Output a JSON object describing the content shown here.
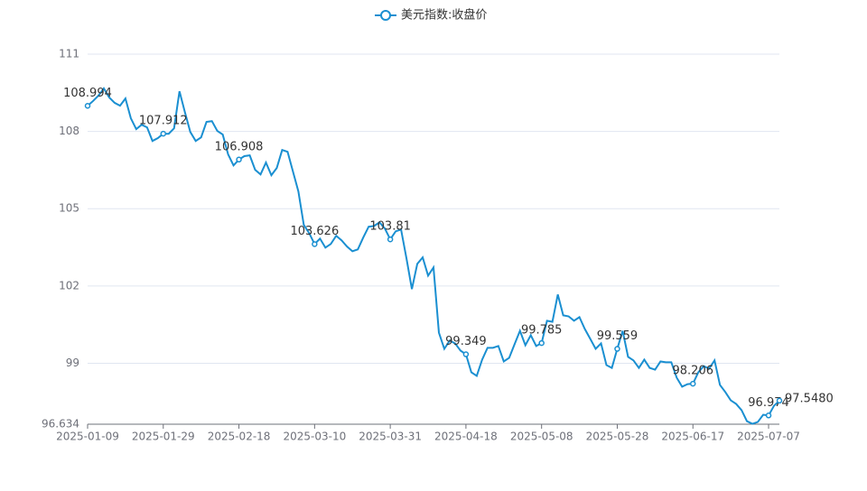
{
  "chart_data": {
    "type": "line",
    "categories": [
      "2025-01-09",
      null,
      null,
      null,
      null,
      null,
      null,
      null,
      null,
      null,
      null,
      null,
      null,
      null,
      "2025-01-29",
      null,
      null,
      null,
      null,
      null,
      null,
      null,
      null,
      null,
      null,
      null,
      null,
      null,
      "2025-02-18",
      null,
      null,
      null,
      null,
      null,
      null,
      null,
      null,
      null,
      null,
      null,
      null,
      null,
      "2025-03-10",
      null,
      null,
      null,
      null,
      null,
      null,
      null,
      null,
      null,
      null,
      null,
      null,
      null,
      "2025-03-31",
      null,
      null,
      null,
      null,
      null,
      null,
      null,
      null,
      null,
      null,
      null,
      null,
      null,
      "2025-04-18",
      null,
      null,
      null,
      null,
      null,
      null,
      null,
      null,
      null,
      null,
      null,
      null,
      null,
      "2025-05-08",
      null,
      null,
      null,
      null,
      null,
      null,
      null,
      null,
      null,
      null,
      null,
      null,
      null,
      "2025-05-28",
      null,
      null,
      null,
      null,
      null,
      null,
      null,
      null,
      null,
      null,
      null,
      null,
      null,
      "2025-06-17",
      null,
      null,
      null,
      null,
      null,
      null,
      null,
      null,
      null,
      null,
      null,
      null,
      null,
      "2025-07-07",
      null,
      null
    ],
    "series": [
      {
        "name": "美元指数:收盘价",
        "color": "#1a8fd1",
        "values": [
          108.994,
          109.18,
          109.39,
          109.67,
          109.32,
          109.11,
          109.0,
          109.28,
          108.51,
          108.09,
          108.26,
          108.16,
          107.63,
          107.74,
          107.912,
          107.91,
          108.12,
          109.56,
          108.75,
          107.98,
          107.63,
          107.77,
          108.37,
          108.4,
          108.02,
          107.88,
          107.11,
          106.68,
          106.908,
          107.04,
          107.07,
          106.51,
          106.33,
          106.79,
          106.3,
          106.58,
          107.28,
          107.21,
          106.44,
          105.67,
          104.37,
          104.05,
          103.626,
          103.84,
          103.49,
          103.63,
          103.95,
          103.77,
          103.53,
          103.35,
          103.42,
          103.88,
          104.3,
          104.33,
          104.47,
          104.23,
          103.81,
          104.12,
          104.19,
          103.07,
          101.88,
          102.86,
          103.11,
          102.4,
          102.72,
          100.19,
          99.56,
          99.88,
          99.77,
          99.49,
          99.349,
          98.65,
          98.51,
          99.14,
          99.6,
          99.6,
          99.67,
          99.07,
          99.21,
          99.74,
          100.26,
          99.7,
          100.09,
          99.67,
          99.785,
          100.65,
          100.61,
          101.67,
          100.86,
          100.82,
          100.65,
          100.79,
          100.33,
          99.95,
          99.56,
          99.77,
          98.93,
          98.82,
          99.559,
          100.26,
          99.25,
          99.11,
          98.82,
          99.14,
          98.82,
          98.75,
          99.07,
          99.04,
          99.04,
          98.44,
          98.09,
          98.19,
          98.206,
          98.65,
          98.89,
          98.79,
          99.11,
          98.16,
          97.88,
          97.56,
          97.42,
          97.18,
          96.75,
          96.65,
          96.72,
          97.0,
          96.974,
          97.35,
          97.548
        ],
        "value_labels": [
          "108.994",
          null,
          null,
          null,
          null,
          null,
          null,
          null,
          null,
          null,
          null,
          null,
          null,
          null,
          "107.912",
          null,
          null,
          null,
          null,
          null,
          null,
          null,
          null,
          null,
          null,
          null,
          null,
          null,
          "106.908",
          null,
          null,
          null,
          null,
          null,
          null,
          null,
          null,
          null,
          null,
          null,
          null,
          null,
          "103.626",
          null,
          null,
          null,
          null,
          null,
          null,
          null,
          null,
          null,
          null,
          null,
          null,
          null,
          "103.81",
          null,
          null,
          null,
          null,
          null,
          null,
          null,
          null,
          null,
          null,
          null,
          null,
          null,
          "99.349",
          null,
          null,
          null,
          null,
          null,
          null,
          null,
          null,
          null,
          null,
          null,
          null,
          null,
          "99.785",
          null,
          null,
          null,
          null,
          null,
          null,
          null,
          null,
          null,
          null,
          null,
          null,
          null,
          "99.559",
          null,
          null,
          null,
          null,
          null,
          null,
          null,
          null,
          null,
          null,
          null,
          null,
          null,
          "98.206",
          null,
          null,
          null,
          null,
          null,
          null,
          null,
          null,
          null,
          null,
          null,
          null,
          null,
          "96.974",
          null,
          "97.5480"
        ]
      }
    ],
    "ylim": [
      96.634,
      111
    ],
    "yticks": [
      96.634,
      99,
      102,
      105,
      108,
      111
    ],
    "grid": true,
    "legend": "top"
  }
}
